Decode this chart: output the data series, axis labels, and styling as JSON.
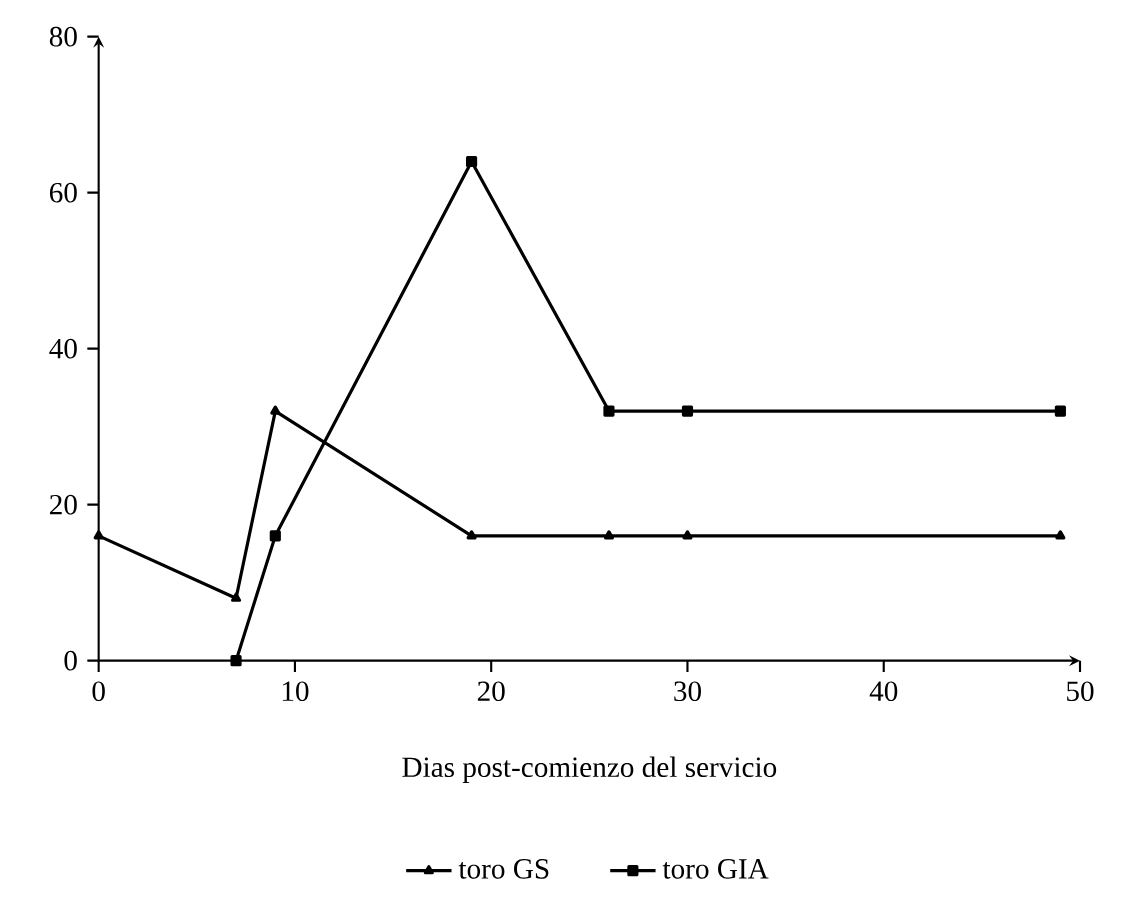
{
  "chart_data": {
    "type": "line",
    "xlabel": "Dias post-comienzo del servicio",
    "xlim": [
      0,
      50
    ],
    "xticks": [
      0,
      10,
      20,
      30,
      40,
      50
    ],
    "ylim": [
      0,
      80
    ],
    "yticks": [
      0,
      20,
      40,
      60,
      80
    ],
    "grid": false,
    "legend": "bottom",
    "line_style": "solid",
    "series": [
      {
        "name": "toro GS",
        "color": "#000000",
        "marker": "triangle",
        "x": [
          0,
          7,
          9,
          19,
          26,
          30,
          49
        ],
        "values": [
          16,
          8,
          32,
          16,
          16,
          16,
          16
        ]
      },
      {
        "name": "toro GIA",
        "color": "#000000",
        "marker": "square",
        "x": [
          7,
          9,
          19,
          26,
          30,
          49
        ],
        "values": [
          0,
          16,
          64,
          32,
          32,
          32
        ]
      }
    ]
  }
}
